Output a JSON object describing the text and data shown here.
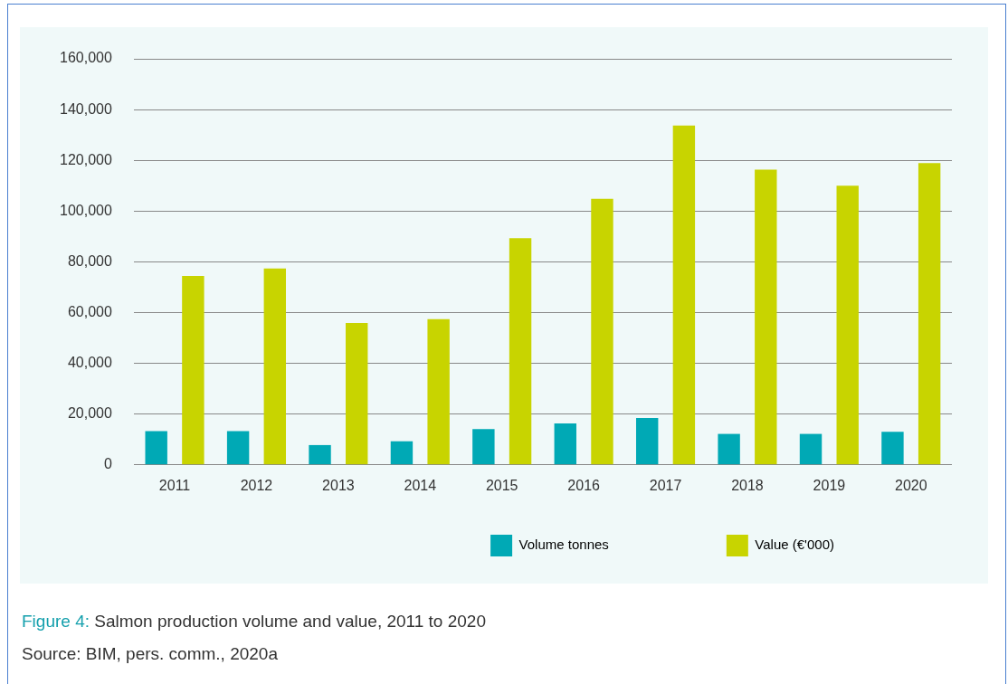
{
  "chart_data": {
    "type": "bar",
    "categories": [
      "2011",
      "2012",
      "2013",
      "2014",
      "2015",
      "2016",
      "2017",
      "2018",
      "2019",
      "2020"
    ],
    "series": [
      {
        "name": "Volume tonnes",
        "color": "#00a9b5",
        "values": [
          13300,
          13300,
          7800,
          9300,
          14100,
          16300,
          18500,
          12200,
          12200,
          13000
        ]
      },
      {
        "name": "Value (€'000)",
        "color": "#c8d400",
        "values": [
          74400,
          77400,
          55900,
          57400,
          89300,
          104800,
          133700,
          116300,
          110000,
          118900
        ]
      }
    ],
    "ylim": [
      0,
      160000
    ],
    "yticks": [
      0,
      {
        "value": 20000,
        "label": "20,000"
      },
      {
        "value": 40000,
        "label": "40,000"
      },
      {
        "value": 60000,
        "label": "60,000"
      },
      {
        "value": 80000,
        "label": "80,000"
      },
      {
        "value": 100000,
        "label": "100,000"
      },
      {
        "value": 120000,
        "label": "120,000"
      },
      {
        "value": 140000,
        "label": "140,000"
      },
      {
        "value": 160000,
        "label": "160,000"
      }
    ],
    "grid": "y",
    "legend": "bottom right",
    "annotations": [
      "Figure 4: Salmon production volume and value, 2011 to 2020",
      "Source: BIM, pers. comm., 2020a"
    ]
  }
}
